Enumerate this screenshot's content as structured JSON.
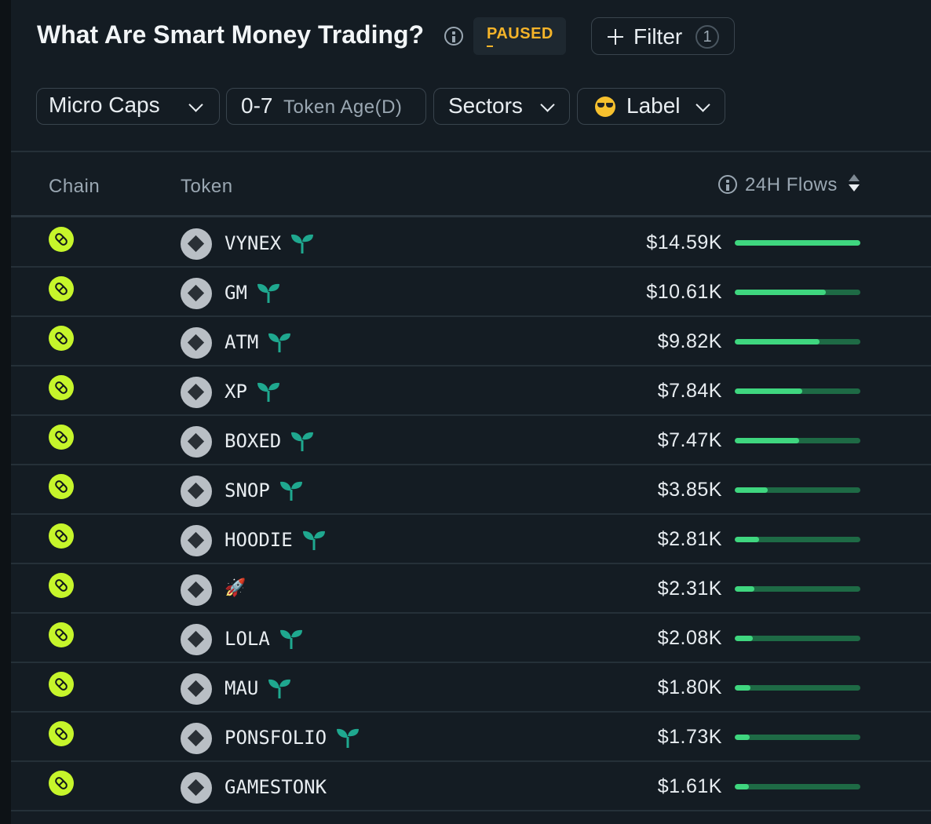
{
  "header": {
    "title": "What Are Smart Money Trading?",
    "status": "PAUSED",
    "filter_label": "Filter",
    "filter_count": "1"
  },
  "filters": {
    "cap": "Micro Caps",
    "age_value": "0-7",
    "age_label": "Token Age(D)",
    "sectors": "Sectors",
    "label": "Label"
  },
  "table": {
    "columns": {
      "chain": "Chain",
      "token": "Token",
      "flows": "24H Flows"
    },
    "rows": [
      {
        "token": "VYNEX",
        "new": true,
        "flow": "$14.59K",
        "fill": 1.0
      },
      {
        "token": "GM",
        "new": true,
        "flow": "$10.61K",
        "fill": 0.727
      },
      {
        "token": "ATM",
        "new": true,
        "flow": "$9.82K",
        "fill": 0.673
      },
      {
        "token": "XP",
        "new": true,
        "flow": "$7.84K",
        "fill": 0.537
      },
      {
        "token": "BOXED",
        "new": true,
        "flow": "$7.47K",
        "fill": 0.512
      },
      {
        "token": "SNOP",
        "new": true,
        "flow": "$3.85K",
        "fill": 0.264
      },
      {
        "token": "HOODIE",
        "new": true,
        "flow": "$2.81K",
        "fill": 0.193
      },
      {
        "token": "🚀",
        "new": false,
        "flow": "$2.31K",
        "fill": 0.158
      },
      {
        "token": "LOLA",
        "new": true,
        "flow": "$2.08K",
        "fill": 0.143
      },
      {
        "token": "MAU",
        "new": true,
        "flow": "$1.80K",
        "fill": 0.123
      },
      {
        "token": "PONSFOLIO",
        "new": true,
        "flow": "$1.73K",
        "fill": 0.119
      },
      {
        "token": "GAMESTONK",
        "new": false,
        "flow": "$1.61K",
        "fill": 0.11
      }
    ]
  },
  "colors": {
    "accent": "#c6f52b",
    "bar_fill": "#3fd67f",
    "bar_track": "#1e6a45",
    "paused": "#f5b429",
    "sprout": "#1fa88f"
  },
  "icons": {
    "chain": "pump-chain-icon",
    "token": "token-placeholder-icon",
    "new_token": "sprout-icon",
    "label": "sunglasses-emoji-icon"
  }
}
